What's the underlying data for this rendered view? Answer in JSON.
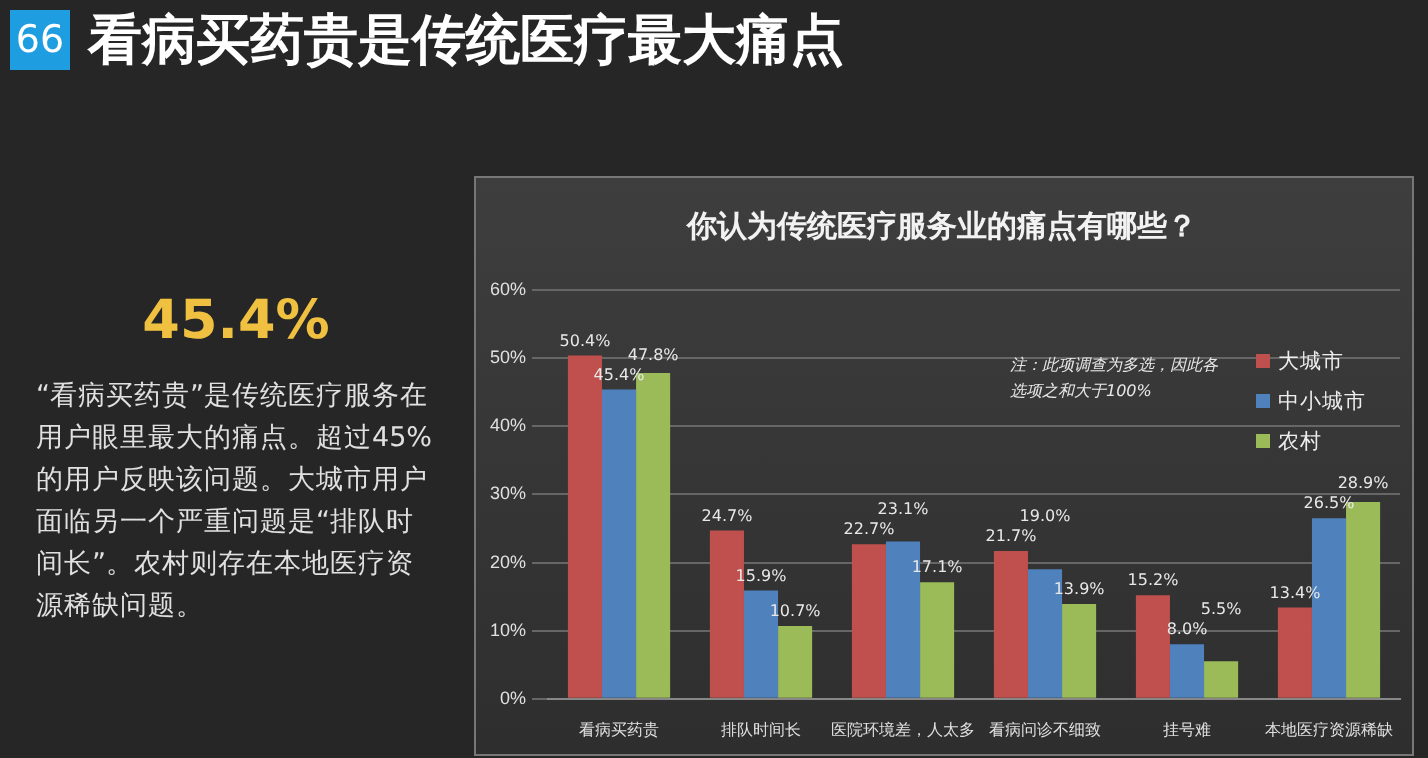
{
  "chart_data": {
    "type": "bar",
    "title": "看病买药贵是传统医疗最大痛点",
    "subtitle": "你认为传统医疗服务业的痛点有哪些？",
    "categories": [
      "看病买药贵",
      "排队时间长",
      "医院环境差，人太多",
      "看病问诊不细致",
      "挂号难",
      "本地医疗资源稀缺"
    ],
    "series": [
      {
        "name": "大城市",
        "color": "#c0504d",
        "values": [
          50.4,
          24.7,
          22.7,
          21.7,
          15.2,
          13.4
        ],
        "value_labels": [
          "50.4%",
          "24.7%",
          "22.7%",
          "21.7%",
          "15.2%",
          "13.4%"
        ]
      },
      {
        "name": "中小城市",
        "color": "#4f81bd",
        "values": [
          45.4,
          15.9,
          23.1,
          19.0,
          8.0,
          26.5
        ],
        "value_labels": [
          "45.4%",
          "15.9%",
          "23.1%",
          "19.0%",
          "8.0%",
          "26.5%"
        ]
      },
      {
        "name": "农村",
        "color": "#9bbb59",
        "values": [
          47.8,
          10.7,
          17.1,
          13.9,
          5.5,
          28.9
        ],
        "value_labels": [
          "47.8%",
          "10.7%",
          "17.1%",
          "13.9%",
          "5.5%",
          "28.9%"
        ]
      }
    ],
    "ylim": [
      0,
      60
    ],
    "yticks": [
      {
        "value": 0,
        "label": "0%"
      },
      {
        "value": 10,
        "label": "10%"
      },
      {
        "value": 20,
        "label": "20%"
      },
      {
        "value": 30,
        "label": "30%"
      },
      {
        "value": 40,
        "label": "40%"
      },
      {
        "value": 50,
        "label": "50%"
      },
      {
        "value": 60,
        "label": "60%"
      }
    ],
    "grid": "y",
    "legend": "top right",
    "annotations": [
      "66",
      "45.4%",
      "“看病买药贵”是传统医疗服务在用户眼里最大的痛点。超过45%的用户反映该问题。大城市用户面临另一个严重问题是“排队时间长”。农村则存在本地医疗资源稀缺问题。",
      "注：此项调查为多选，因此各选项之和大于100%"
    ]
  }
}
